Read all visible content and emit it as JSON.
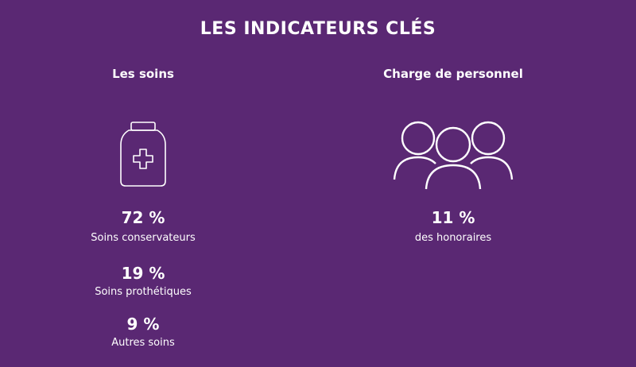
{
  "title": "LES INDICATEURS CLÉS",
  "columns": [
    {
      "heading": "Les soins",
      "stats": [
        {
          "value": "72 %",
          "label": "Soins conservateurs"
        },
        {
          "value": "19 %",
          "label": "Soins prothétiques"
        },
        {
          "value": "9 %",
          "label": "Autres soins"
        }
      ]
    },
    {
      "heading": "Charge de personnel",
      "stats": [
        {
          "value": "11 %",
          "label": "des honoraires"
        }
      ]
    }
  ]
}
